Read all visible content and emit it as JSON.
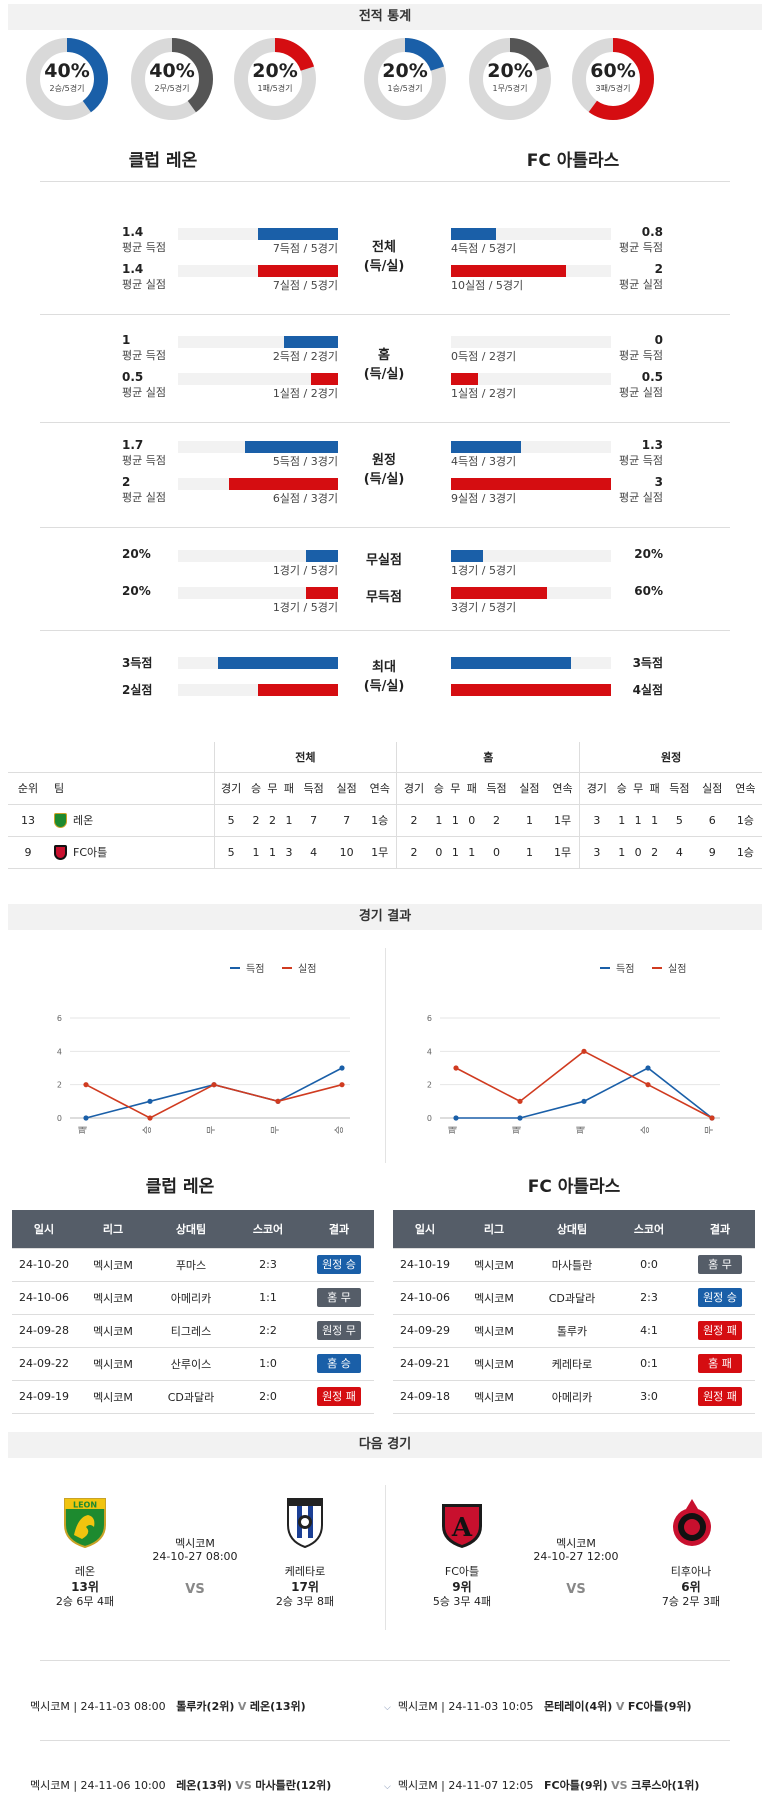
{
  "sections": {
    "stats": "전적 통계",
    "results": "경기 결과",
    "next": "다음 경기"
  },
  "teams": {
    "home": "클럽 레온",
    "away": "FC 아틀라스"
  },
  "donuts": [
    {
      "pct": "40%",
      "sub": "2승/5경기",
      "frac": 0.4,
      "color": "#1a5fa8"
    },
    {
      "pct": "40%",
      "sub": "2무/5경기",
      "frac": 0.4,
      "color": "#555555"
    },
    {
      "pct": "20%",
      "sub": "1패/5경기",
      "frac": 0.2,
      "color": "#d50d11"
    },
    {
      "pct": "20%",
      "sub": "1승/5경기",
      "frac": 0.2,
      "color": "#1a5fa8"
    },
    {
      "pct": "20%",
      "sub": "1무/5경기",
      "frac": 0.2,
      "color": "#555555"
    },
    {
      "pct": "60%",
      "sub": "3패/5경기",
      "frac": 0.6,
      "color": "#d50d11"
    }
  ],
  "stat_groups": [
    {
      "mid": [
        "전체",
        "(득/실)"
      ],
      "home": [
        {
          "v": "1.4",
          "l": "평균 득점",
          "cap": "7득점 / 5경기",
          "frac": 0.5,
          "c": "blue"
        },
        {
          "v": "1.4",
          "l": "평균 실점",
          "cap": "7실점 / 5경기",
          "frac": 0.5,
          "c": "red"
        }
      ],
      "away": [
        {
          "v": "0.8",
          "l": "평균 득점",
          "cap": "4득점 / 5경기",
          "frac": 0.28,
          "c": "blue"
        },
        {
          "v": "2",
          "l": "평균 실점",
          "cap": "10실점 / 5경기",
          "frac": 0.72,
          "c": "red"
        }
      ]
    },
    {
      "mid": [
        "홈",
        "(득/실)"
      ],
      "home": [
        {
          "v": "1",
          "l": "평균 득점",
          "cap": "2득점 / 2경기",
          "frac": 0.34,
          "c": "blue"
        },
        {
          "v": "0.5",
          "l": "평균 실점",
          "cap": "1실점 / 2경기",
          "frac": 0.17,
          "c": "red"
        }
      ],
      "away": [
        {
          "v": "0",
          "l": "평균 득점",
          "cap": "0득점 / 2경기",
          "frac": 0.0,
          "c": "blue"
        },
        {
          "v": "0.5",
          "l": "평균 실점",
          "cap": "1실점 / 2경기",
          "frac": 0.17,
          "c": "red"
        }
      ]
    },
    {
      "mid": [
        "원정",
        "(득/실)"
      ],
      "home": [
        {
          "v": "1.7",
          "l": "평균 득점",
          "cap": "5득점 / 3경기",
          "frac": 0.58,
          "c": "blue"
        },
        {
          "v": "2",
          "l": "평균 실점",
          "cap": "6실점 / 3경기",
          "frac": 0.68,
          "c": "red"
        }
      ],
      "away": [
        {
          "v": "1.3",
          "l": "평균 득점",
          "cap": "4득점 / 3경기",
          "frac": 0.44,
          "c": "blue"
        },
        {
          "v": "3",
          "l": "평균 실점",
          "cap": "9실점 / 3경기",
          "frac": 1.0,
          "c": "red"
        }
      ]
    }
  ],
  "clean": {
    "labels": [
      "무실점",
      "무득점"
    ],
    "home": [
      {
        "v": "20%",
        "cap": "1경기 / 5경기",
        "frac": 0.2,
        "c": "blue"
      },
      {
        "v": "20%",
        "cap": "1경기 / 5경기",
        "frac": 0.2,
        "c": "red"
      }
    ],
    "away": [
      {
        "v": "20%",
        "cap": "1경기 / 5경기",
        "frac": 0.2,
        "c": "blue"
      },
      {
        "v": "60%",
        "cap": "3경기 / 5경기",
        "frac": 0.6,
        "c": "red"
      }
    ]
  },
  "max": {
    "mid": [
      "최대",
      "(득/실)"
    ],
    "home": [
      {
        "v": "3득점",
        "frac": 0.75,
        "c": "blue"
      },
      {
        "v": "2실점",
        "frac": 0.5,
        "c": "red"
      }
    ],
    "away": [
      {
        "v": "3득점",
        "frac": 0.75,
        "c": "blue"
      },
      {
        "v": "4실점",
        "frac": 1.0,
        "c": "red"
      }
    ]
  },
  "standings": {
    "groups": [
      "전체",
      "홈",
      "원정"
    ],
    "head": [
      "순위",
      "팀"
    ],
    "cols": [
      "경기",
      "승",
      "무",
      "패",
      "득점",
      "실점",
      "연속"
    ],
    "rows": [
      {
        "rank": "13",
        "team": "레온",
        "logo": "leon",
        "all": [
          "5",
          "2",
          "2",
          "1",
          "7",
          "7",
          "1승"
        ],
        "home": [
          "2",
          "1",
          "1",
          "0",
          "2",
          "1",
          "1무"
        ],
        "away": [
          "3",
          "1",
          "1",
          "1",
          "5",
          "6",
          "1승"
        ]
      },
      {
        "rank": "9",
        "team": "FC아틀",
        "logo": "atlas",
        "all": [
          "5",
          "1",
          "1",
          "3",
          "4",
          "10",
          "1무"
        ],
        "home": [
          "2",
          "0",
          "1",
          "1",
          "0",
          "1",
          "1무"
        ],
        "away": [
          "3",
          "1",
          "0",
          "2",
          "4",
          "9",
          "1승"
        ]
      }
    ]
  },
  "chart_data": [
    {
      "type": "line",
      "categories": [
        "패",
        "승",
        "무",
        "무",
        "승"
      ],
      "ylim": [
        0,
        6
      ],
      "yticks": [
        "0",
        "2",
        "4",
        "6"
      ],
      "series": [
        {
          "name": "득점",
          "color": "#1a5fa8",
          "values": [
            0,
            1,
            2,
            1,
            3
          ]
        },
        {
          "name": "실점",
          "color": "#d03b20",
          "values": [
            2,
            0,
            2,
            1,
            2
          ]
        }
      ],
      "legend": "top-right"
    },
    {
      "type": "line",
      "categories": [
        "패",
        "패",
        "패",
        "승",
        "무"
      ],
      "ylim": [
        0,
        6
      ],
      "yticks": [
        "0",
        "2",
        "4",
        "6"
      ],
      "series": [
        {
          "name": "득점",
          "color": "#1a5fa8",
          "values": [
            0,
            0,
            1,
            3,
            0
          ]
        },
        {
          "name": "실점",
          "color": "#d03b20",
          "values": [
            3,
            1,
            4,
            2,
            0
          ]
        }
      ],
      "legend": "top-right"
    }
  ],
  "results": {
    "head": [
      "일시",
      "리그",
      "상대팀",
      "스코어",
      "결과"
    ],
    "home": [
      [
        "24-10-20",
        "멕시코M",
        "푸마스",
        "2:3",
        "원정 승",
        "#1a5fa8"
      ],
      [
        "24-10-06",
        "멕시코M",
        "아메리카",
        "1:1",
        "홈 무",
        "#555d68"
      ],
      [
        "24-09-28",
        "멕시코M",
        "티그레스",
        "2:2",
        "원정 무",
        "#555d68"
      ],
      [
        "24-09-22",
        "멕시코M",
        "산루이스",
        "1:0",
        "홈 승",
        "#1a5fa8"
      ],
      [
        "24-09-19",
        "멕시코M",
        "CD과달라",
        "2:0",
        "원정 패",
        "#d50d11"
      ]
    ],
    "away": [
      [
        "24-10-19",
        "멕시코M",
        "마사틀란",
        "0:0",
        "홈 무",
        "#555d68"
      ],
      [
        "24-10-06",
        "멕시코M",
        "CD과달라",
        "2:3",
        "원정 승",
        "#1a5fa8"
      ],
      [
        "24-09-29",
        "멕시코M",
        "톨루카",
        "4:1",
        "원정 패",
        "#d50d11"
      ],
      [
        "24-09-21",
        "멕시코M",
        "케레타로",
        "0:1",
        "홈 패",
        "#d50d11"
      ],
      [
        "24-09-18",
        "멕시코M",
        "아메리카",
        "3:0",
        "원정 패",
        "#d50d11"
      ]
    ]
  },
  "next": [
    {
      "league": "멕시코M",
      "dt": "24-10-27 08:00",
      "vs": "VS",
      "t1": {
        "name": "레온",
        "rank": "13위",
        "rec": "2승 6무 4패"
      },
      "t2": {
        "name": "케레타로",
        "rank": "17위",
        "rec": "2승 3무 8패"
      }
    },
    {
      "league": "멕시코M",
      "dt": "24-10-27 12:00",
      "vs": "VS",
      "t1": {
        "name": "FC아틀",
        "rank": "9위",
        "rec": "5승 3무 4패"
      },
      "t2": {
        "name": "티후아나",
        "rank": "6위",
        "rec": "7승 2무 3패"
      }
    }
  ],
  "upcoming": [
    {
      "l": "멕시코M | 24-11-03 08:00",
      "t1": "톨루카(2위)",
      "vs": "V",
      "t2": "레온(13위)",
      "r": "멕시코M | 24-11-03 10:05",
      "r1": "몬테레이(4위)",
      "rvs": "V",
      "r2": "FC아틀(9위)"
    },
    {
      "l": "멕시코M | 24-11-06 10:00",
      "t1": "레온(13위)",
      "vs": "VS",
      "t2": "마사틀란(12위)",
      "r": "멕시코M | 24-11-07 12:05",
      "r1": "FC아틀(9위)",
      "rvs": "VS",
      "r2": "크루스아(1위)"
    }
  ]
}
